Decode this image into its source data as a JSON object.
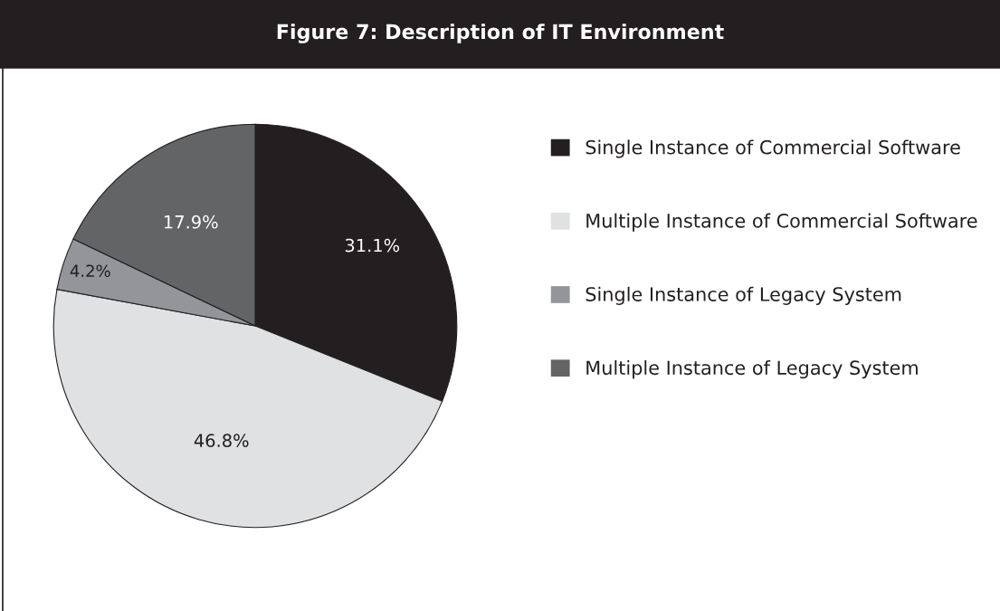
{
  "chart_data": {
    "type": "pie",
    "title": "Figure 7: Description of IT Environment",
    "categories": [
      "Single Instance of Commercial Software",
      "Multiple Instance of Commercial Software",
      "Single Instance of Legacy System",
      "Multiple Instance of Legacy System"
    ],
    "values": [
      31.1,
      46.8,
      4.2,
      17.9
    ],
    "colors": [
      "#231f20",
      "#e0e1e3",
      "#939598",
      "#636466"
    ],
    "value_labels": [
      "31.1%",
      "46.8%",
      "4.2%",
      "17.9%"
    ],
    "legend": "right"
  }
}
